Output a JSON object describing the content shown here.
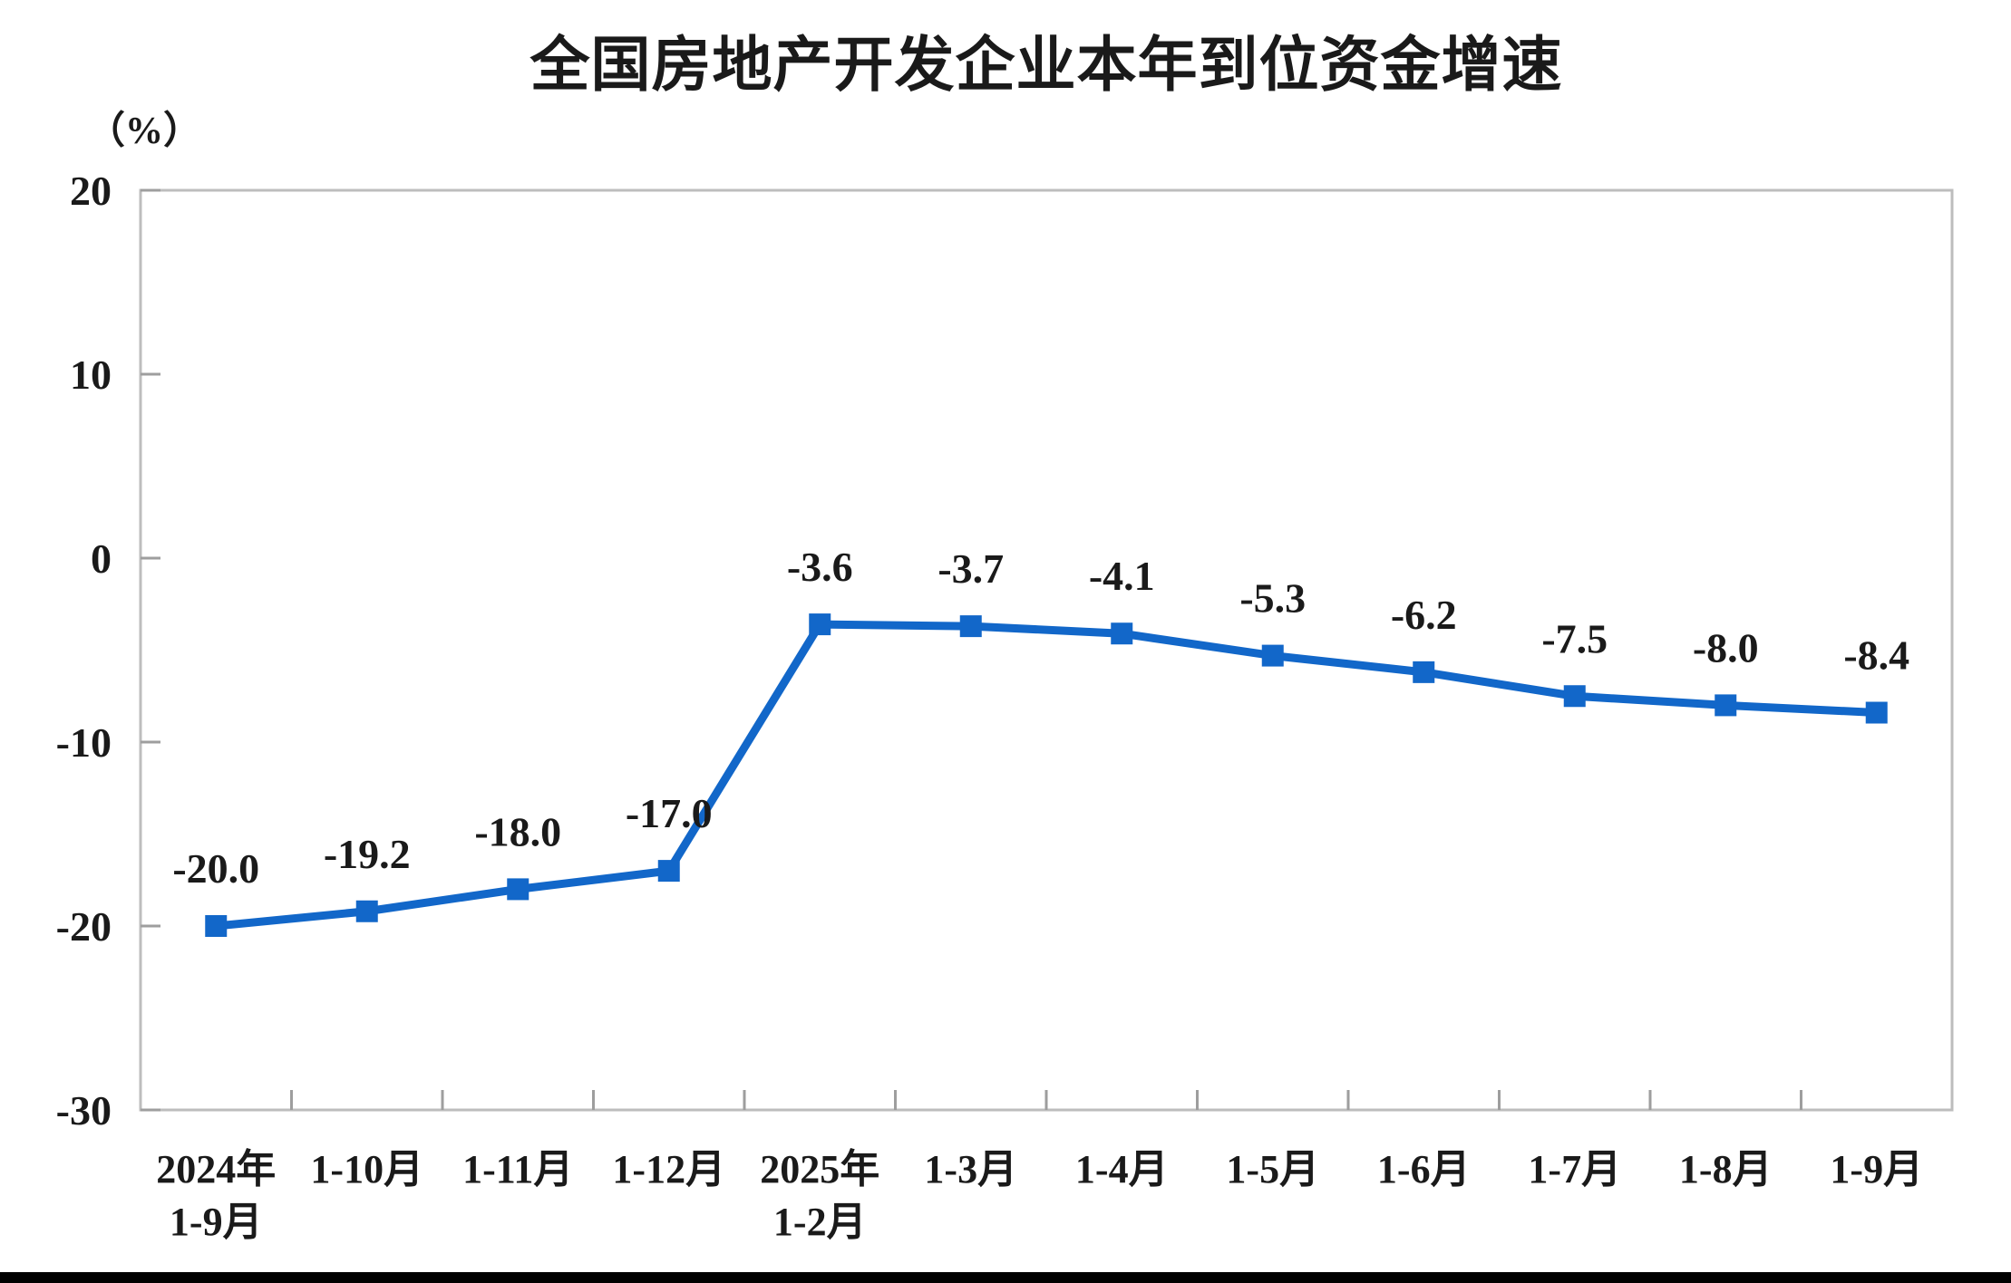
{
  "chart_data": {
    "type": "line",
    "title": "全国房地产开发企业本年到位资金增速",
    "unit": "（%）",
    "categories": [
      "2024年\n1-9月",
      "1-10月",
      "1-11月",
      "1-12月",
      "2025年\n1-2月",
      "1-3月",
      "1-4月",
      "1-5月",
      "1-6月",
      "1-7月",
      "1-8月",
      "1-9月"
    ],
    "values": [
      -20.0,
      -19.2,
      -18.0,
      -17.0,
      -3.6,
      -3.7,
      -4.1,
      -5.3,
      -6.2,
      -7.5,
      -8.0,
      -8.4
    ],
    "data_labels": [
      "-20.0",
      "-19.2",
      "-18.0",
      "-17.0",
      "-3.6",
      "-3.7",
      "-4.1",
      "-5.3",
      "-6.2",
      "-7.5",
      "-8.0",
      "-8.4"
    ],
    "ylim": [
      -30,
      20
    ],
    "yticks": [
      20,
      10,
      0,
      -10,
      -20,
      -30
    ],
    "grid": false,
    "legend": "none",
    "line_color": "#1267C9",
    "text_color": "#1a1a1a",
    "frame_color": "#bdbdbd",
    "tick_color": "#9e9e9e"
  }
}
